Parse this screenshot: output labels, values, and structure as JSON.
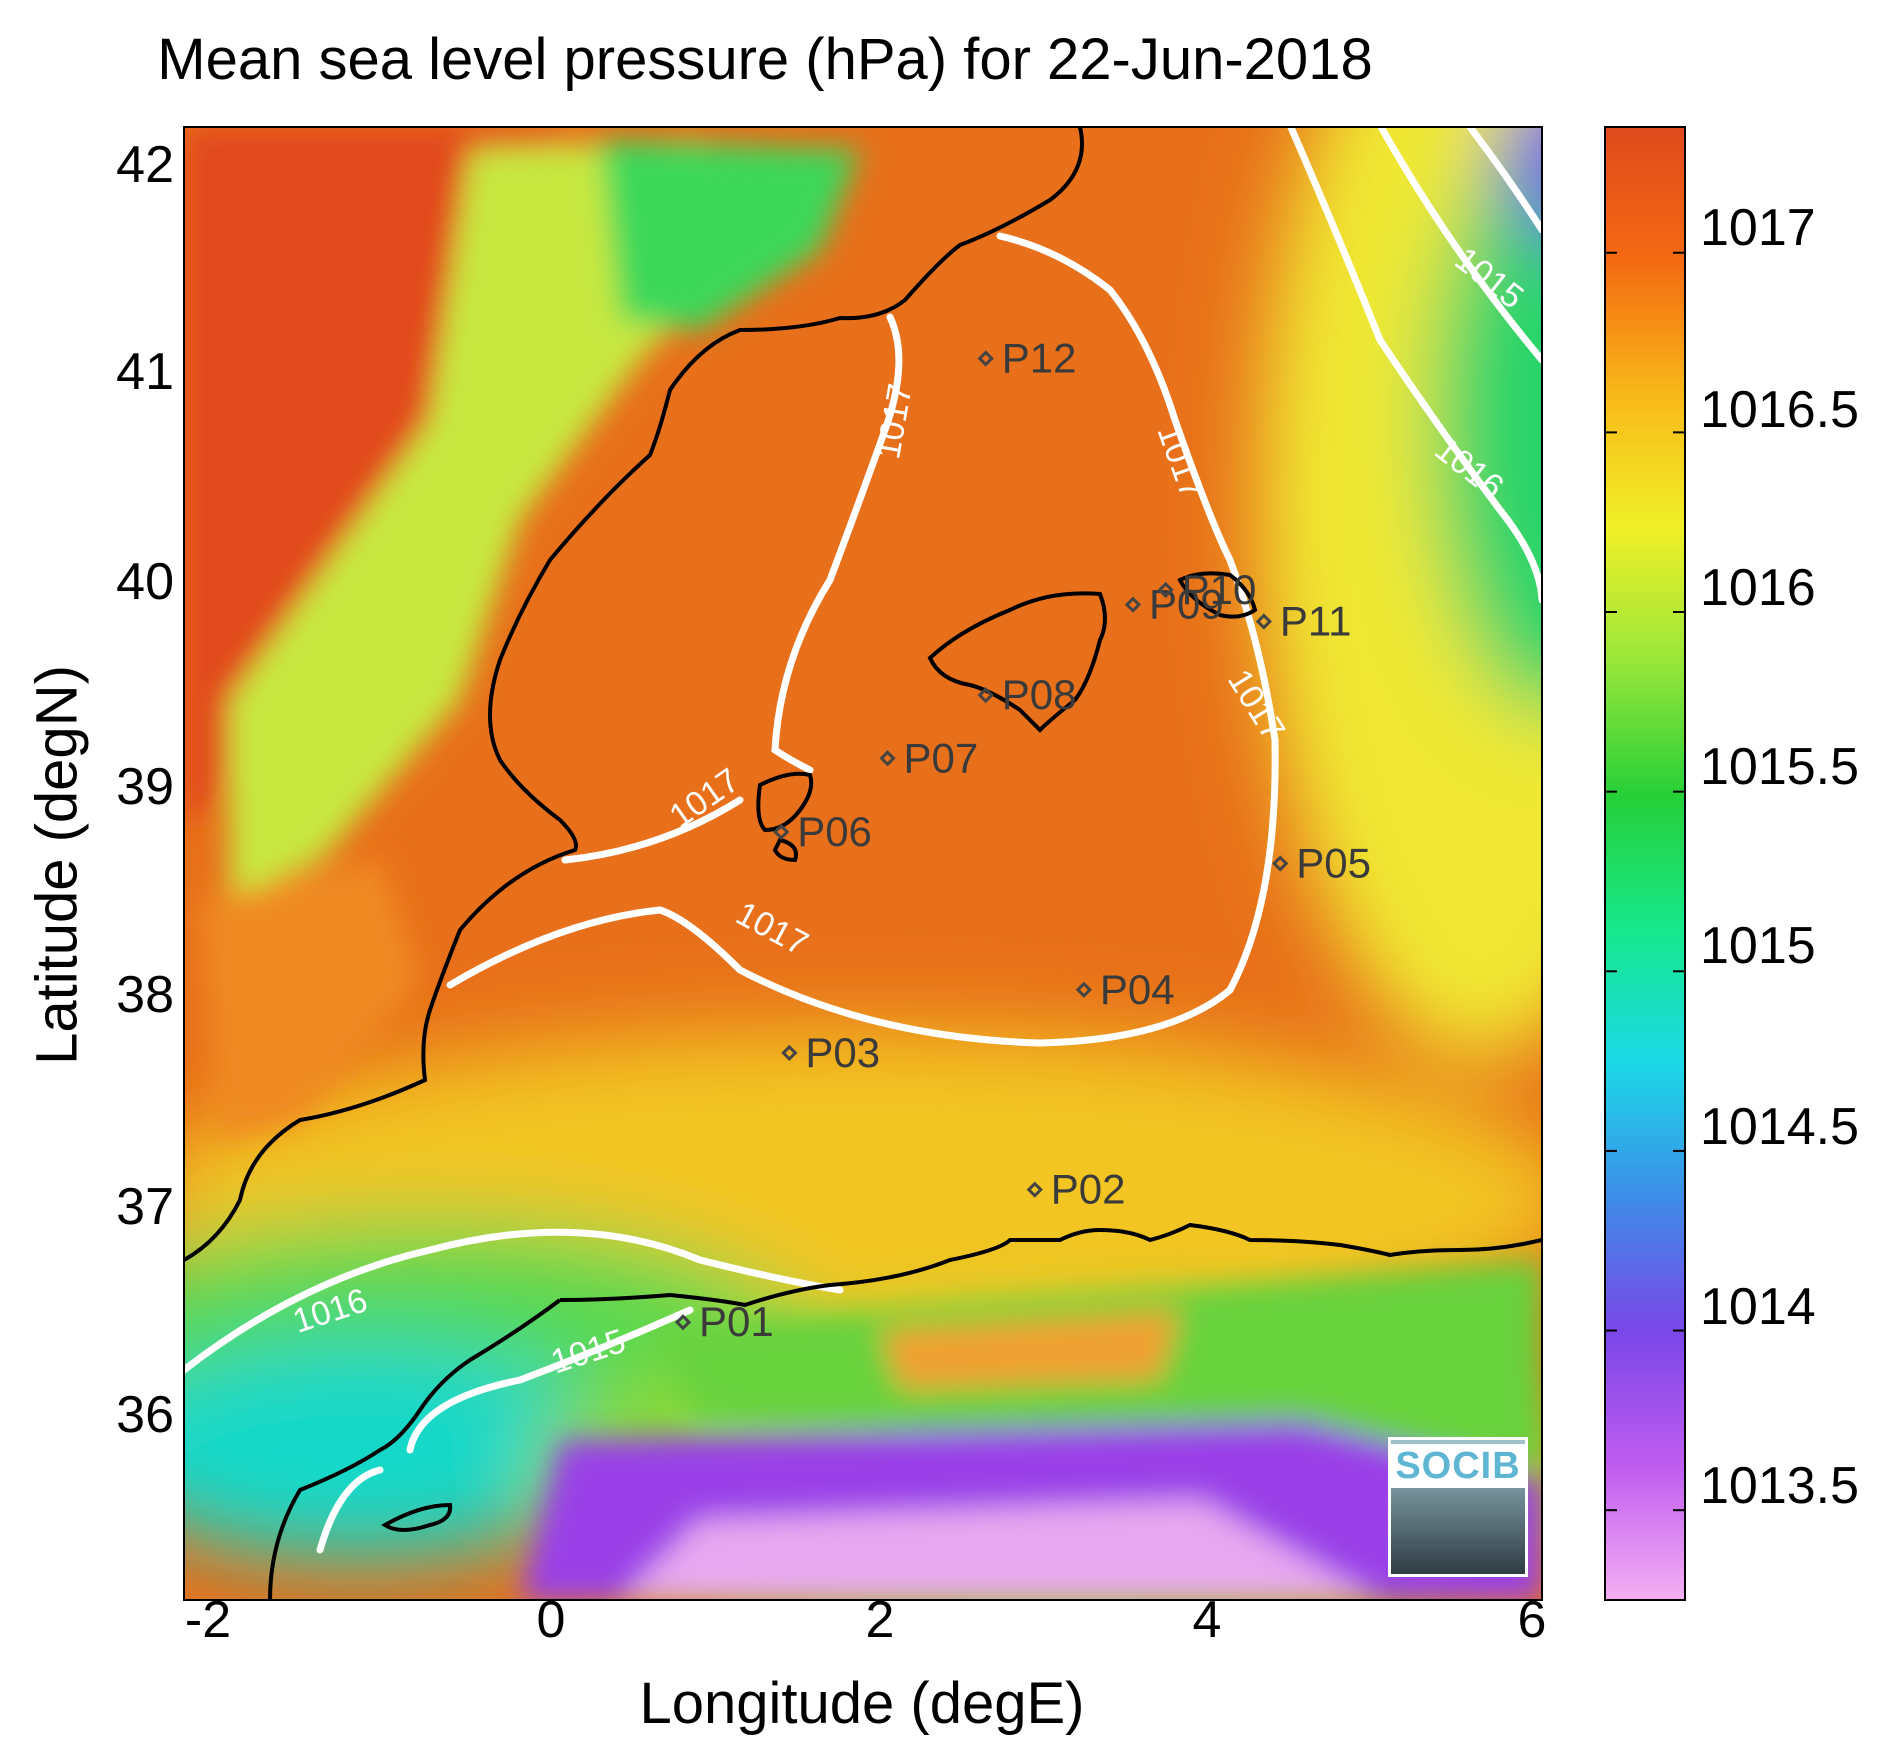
{
  "title": "Mean sea level pressure (hPa) for 22-Jun-2018",
  "xlabel": "Longitude (degE)",
  "ylabel": "Latitude (degN)",
  "x_ticks": [
    "-2",
    "0",
    "2",
    "4",
    "6"
  ],
  "y_ticks": [
    "42",
    "41",
    "40",
    "39",
    "38",
    "37",
    "36"
  ],
  "colorbar": {
    "range": [
      1013.25,
      1017.35
    ],
    "ticks": [
      "1017",
      "1016.5",
      "1016",
      "1015.5",
      "1015",
      "1014.5",
      "1014",
      "1013.5"
    ],
    "colors": [
      "#f4b0f2",
      "#c05cf0",
      "#7b47e8",
      "#3d8ce8",
      "#1cd8e8",
      "#16e88c",
      "#26d038",
      "#98e63a",
      "#f0f028",
      "#f8b818",
      "#f46a12",
      "#e04a1c"
    ]
  },
  "map": {
    "xlim": [
      -2.2,
      6.1
    ],
    "ylim": [
      35.2,
      42.2
    ],
    "stations": [
      {
        "name": "P01",
        "lon": 0.85,
        "lat": 36.52
      },
      {
        "name": "P02",
        "lon": 3.0,
        "lat": 37.15
      },
      {
        "name": "P03",
        "lon": 1.5,
        "lat": 37.8
      },
      {
        "name": "P04",
        "lon": 3.3,
        "lat": 38.1
      },
      {
        "name": "P05",
        "lon": 4.5,
        "lat": 38.7
      },
      {
        "name": "P06",
        "lon": 1.45,
        "lat": 38.85
      },
      {
        "name": "P07",
        "lon": 2.1,
        "lat": 39.2
      },
      {
        "name": "P08",
        "lon": 2.7,
        "lat": 39.5
      },
      {
        "name": "P09",
        "lon": 3.6,
        "lat": 39.93
      },
      {
        "name": "P10",
        "lon": 3.8,
        "lat": 40.0
      },
      {
        "name": "P11",
        "lon": 4.4,
        "lat": 39.85
      },
      {
        "name": "P12",
        "lon": 2.7,
        "lat": 41.1
      }
    ],
    "contour_labels": [
      "1017",
      "1017",
      "1017",
      "1017",
      "1017",
      "1016",
      "1015",
      "1016",
      "1015"
    ]
  },
  "logo_text": "SOCIB"
}
